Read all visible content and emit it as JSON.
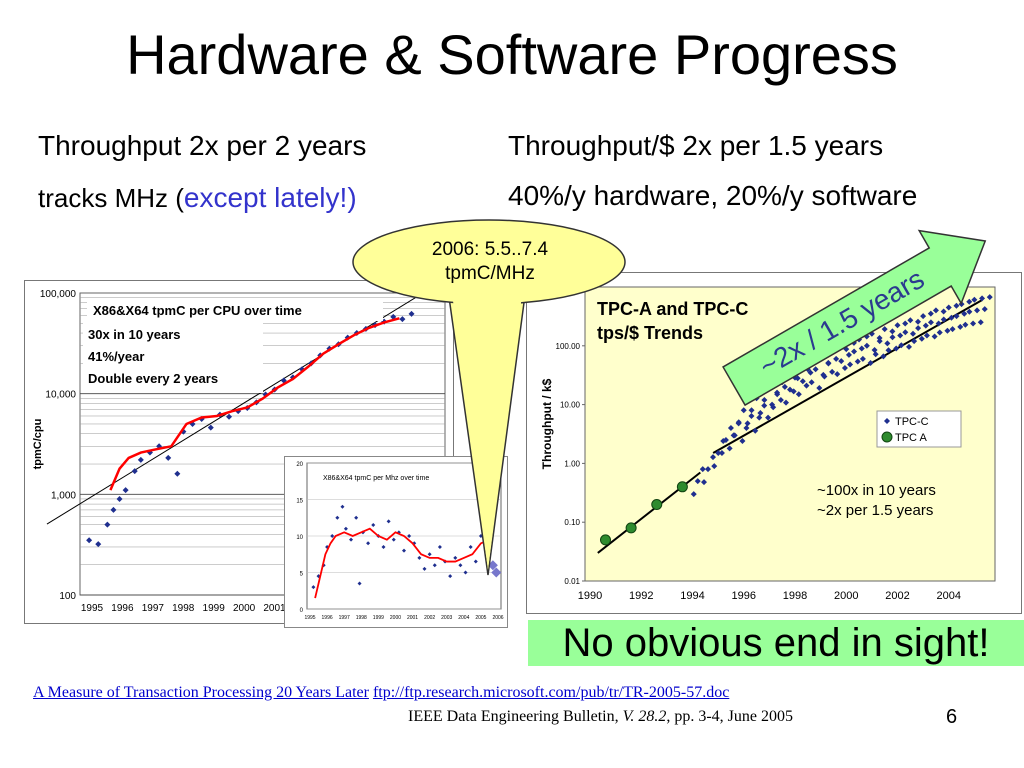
{
  "slide": {
    "title": "Hardware & Software Progress",
    "left_line1": "Throughput 2x per 2 years",
    "left_line2_prefix": "tracks MHz (",
    "left_line2_emph": "except lately!",
    "left_line2_suffix": ")",
    "right_line1": "Throughput/$  2x per 1.5 years",
    "right_line2": "40%/y hardware, 20%/y software",
    "callout_line1": "2006: 5.5..7.4",
    "callout_line2": "tpmC/MHz",
    "no_end": "No obvious end in sight!",
    "ref_link1": "A Measure of Transaction Processing 20 Years Later",
    "ref_link2": "ftp://ftp.research.microsoft.com/pub/tr/TR-2005-57.doc",
    "ref_citation_prefix": "IEEE Data Engineering Bulletin, ",
    "ref_citation_italic": "V. 28.2",
    "ref_citation_suffix": ", pp. 3-4, June 2005",
    "slide_number": "6",
    "colors": {
      "accent_text": "#3333cc",
      "trend_red": "#ff0000",
      "points_blue": "#1f2f8f",
      "highlight_green": "#99ff99",
      "callout_yellow": "#ffff99"
    }
  },
  "chart_data": [
    {
      "type": "scatter",
      "title": "X86&X64 tpmC per CPU over time",
      "annotations": [
        "30x in 10 years",
        "41%/year",
        "Double every 2 years"
      ],
      "ylabel": "tpmC/cpu",
      "yscale": "log",
      "ylim": [
        100,
        100000
      ],
      "ytick_labels": [
        "100",
        "1,000",
        "10,000",
        "100,000"
      ],
      "xlim": [
        1995,
        2007
      ],
      "xtick_labels": [
        "1995",
        "1996",
        "1997",
        "1998",
        "1999",
        "2000",
        "2001"
      ],
      "grid": true,
      "series": [
        {
          "values": [
            [
              1995.3,
              350
            ],
            [
              1995.6,
              320
            ],
            [
              1995.9,
              500
            ],
            [
              1996.1,
              700
            ],
            [
              1996.3,
              900
            ],
            [
              1996.5,
              1100
            ],
            [
              1996.8,
              1700
            ],
            [
              1997.0,
              2200
            ],
            [
              1997.3,
              2600
            ],
            [
              1997.6,
              3000
            ],
            [
              1997.9,
              2300
            ],
            [
              1998.2,
              1600
            ],
            [
              1998.4,
              4200
            ],
            [
              1998.7,
              5000
            ],
            [
              1999.0,
              5600
            ],
            [
              1999.3,
              4600
            ],
            [
              1999.6,
              6200
            ],
            [
              1999.9,
              5900
            ],
            [
              2000.2,
              6700
            ],
            [
              2000.5,
              7200
            ],
            [
              2000.8,
              8200
            ],
            [
              2001.1,
              9800
            ],
            [
              2001.4,
              11000
            ],
            [
              2001.7,
              13500
            ],
            [
              2002.0,
              14500
            ],
            [
              2002.3,
              17500
            ],
            [
              2002.6,
              20000
            ],
            [
              2002.9,
              24000
            ],
            [
              2003.2,
              28000
            ],
            [
              2003.5,
              31000
            ],
            [
              2003.8,
              36000
            ],
            [
              2004.1,
              40000
            ],
            [
              2004.4,
              44000
            ],
            [
              2004.7,
              48000
            ],
            [
              2005.0,
              52000
            ],
            [
              2005.3,
              58000
            ],
            [
              2005.6,
              55000
            ],
            [
              2005.9,
              62000
            ]
          ]
        }
      ],
      "trend": {
        "values": [
          [
            1996.0,
            1100
          ],
          [
            1996.3,
            1800
          ],
          [
            1996.6,
            2300
          ],
          [
            1997.0,
            2600
          ],
          [
            1997.5,
            2800
          ],
          [
            1998.0,
            3000
          ],
          [
            1998.5,
            5000
          ],
          [
            1999.0,
            5800
          ],
          [
            1999.5,
            6000
          ],
          [
            2000.0,
            6700
          ],
          [
            2000.5,
            7300
          ],
          [
            2001.0,
            8900
          ],
          [
            2001.5,
            11500
          ],
          [
            2002.0,
            14000
          ],
          [
            2002.5,
            18500
          ],
          [
            2003.0,
            25000
          ],
          [
            2003.5,
            31000
          ],
          [
            2004.0,
            38000
          ],
          [
            2004.5,
            45000
          ],
          [
            2005.0,
            51000
          ],
          [
            2005.5,
            56000
          ]
        ]
      },
      "fit_line": {
        "values": [
          [
            1994.9,
            800
          ],
          [
            2006.5,
            110000
          ]
        ]
      }
    },
    {
      "type": "scatter",
      "title": "X86&X64 tpmC per Mhz over time",
      "ylim": [
        0,
        20
      ],
      "ytick_labels": [
        "0",
        "5",
        "10",
        "15",
        "20"
      ],
      "xlim": [
        1995,
        2006
      ],
      "xtick_labels": [
        "1995",
        "1996",
        "1997",
        "1998",
        "1999",
        "2000",
        "2001",
        "2002",
        "2003",
        "2004",
        "2005",
        "2006"
      ],
      "series": [
        {
          "values": [
            [
              1995.2,
              3.0
            ],
            [
              1995.5,
              4.5
            ],
            [
              1995.8,
              6.0
            ],
            [
              1996.0,
              8.5
            ],
            [
              1996.3,
              10.0
            ],
            [
              1996.6,
              12.5
            ],
            [
              1996.9,
              14.0
            ],
            [
              1997.1,
              11.0
            ],
            [
              1997.4,
              9.5
            ],
            [
              1997.7,
              12.5
            ],
            [
              1997.9,
              3.5
            ],
            [
              1998.1,
              10.5
            ],
            [
              1998.4,
              9.0
            ],
            [
              1998.7,
              11.5
            ],
            [
              1999.0,
              10.0
            ],
            [
              1999.3,
              8.5
            ],
            [
              1999.6,
              12.0
            ],
            [
              1999.9,
              9.5
            ],
            [
              2000.2,
              10.5
            ],
            [
              2000.5,
              8.0
            ],
            [
              2000.8,
              10.0
            ],
            [
              2001.1,
              9.0
            ],
            [
              2001.4,
              7.0
            ],
            [
              2001.7,
              5.5
            ],
            [
              2002.0,
              7.5
            ],
            [
              2002.3,
              6.0
            ],
            [
              2002.6,
              8.5
            ],
            [
              2002.9,
              6.5
            ],
            [
              2003.2,
              4.5
            ],
            [
              2003.5,
              7.0
            ],
            [
              2003.8,
              6.0
            ],
            [
              2004.1,
              5.0
            ],
            [
              2004.4,
              8.5
            ],
            [
              2004.7,
              6.5
            ],
            [
              2005.0,
              10.0
            ],
            [
              2005.3,
              11.5
            ]
          ]
        }
      ],
      "trend": {
        "values": [
          [
            1995.3,
            1.5
          ],
          [
            1995.6,
            4.5
          ],
          [
            1995.9,
            7.5
          ],
          [
            1996.2,
            9.0
          ],
          [
            1996.5,
            10.0
          ],
          [
            1997.0,
            10.5
          ],
          [
            1997.5,
            10.0
          ],
          [
            1998.0,
            10.5
          ],
          [
            1998.5,
            11.0
          ],
          [
            1999.0,
            10.0
          ],
          [
            1999.5,
            9.5
          ],
          [
            2000.0,
            10.5
          ],
          [
            2000.5,
            10.0
          ],
          [
            2001.0,
            9.0
          ],
          [
            2001.5,
            7.5
          ],
          [
            2002.0,
            7.0
          ],
          [
            2002.5,
            7.0
          ],
          [
            2003.0,
            6.5
          ],
          [
            2003.5,
            6.5
          ],
          [
            2004.0,
            7.0
          ],
          [
            2004.5,
            7.5
          ],
          [
            2005.0,
            9.0
          ],
          [
            2005.5,
            9.5
          ]
        ]
      },
      "highlights": [
        [
          2005.7,
          6.0
        ],
        [
          2005.9,
          5.0
        ]
      ]
    },
    {
      "type": "scatter",
      "title": "TPC-A and TPC-C tps/$ Trends",
      "ylabel": "Throughput  / k$",
      "yscale": "log",
      "ylim": [
        0.01,
        1000
      ],
      "ytick_labels": [
        "0.01",
        "0.10",
        "1.00",
        "10.00",
        "100.00"
      ],
      "xlim": [
        1990,
        2006
      ],
      "xtick_labels": [
        "1990",
        "1992",
        "1994",
        "1996",
        "1998",
        "2000",
        "2002",
        "2004"
      ],
      "legend_position": "right",
      "series": [
        {
          "name": "TPC-C",
          "values": [
            [
              1994.4,
              0.5
            ],
            [
              1994.8,
              0.8
            ],
            [
              1995.2,
              1.5
            ],
            [
              1995.5,
              2.5
            ],
            [
              1995.8,
              3.0
            ],
            [
              1996.0,
              5.0
            ],
            [
              1996.3,
              4.0
            ],
            [
              1996.5,
              8.0
            ],
            [
              1996.8,
              6.0
            ],
            [
              1997.0,
              12.0
            ],
            [
              1997.3,
              10.0
            ],
            [
              1997.5,
              15.0
            ],
            [
              1997.8,
              20.0
            ],
            [
              1998.0,
              18.0
            ],
            [
              1998.3,
              28.0
            ],
            [
              1998.5,
              25.0
            ],
            [
              1998.8,
              35.0
            ],
            [
              1999.0,
              40.0
            ],
            [
              1999.3,
              32.0
            ],
            [
              1999.5,
              50.0
            ],
            [
              1999.8,
              60.0
            ],
            [
              2000.0,
              55.0
            ],
            [
              2000.3,
              70.0
            ],
            [
              2000.5,
              80.0
            ],
            [
              2000.8,
              90.0
            ],
            [
              2001.0,
              100.0
            ],
            [
              2001.3,
              85.0
            ],
            [
              2001.5,
              120.0
            ],
            [
              2001.8,
              110.0
            ],
            [
              2002.0,
              140.0
            ],
            [
              2002.3,
              150.0
            ],
            [
              2002.5,
              170.0
            ],
            [
              2002.8,
              160.0
            ],
            [
              2003.0,
              200.0
            ],
            [
              2003.3,
              220.0
            ],
            [
              2003.5,
              250.0
            ],
            [
              2003.8,
              240.0
            ],
            [
              2004.0,
              280.0
            ],
            [
              2004.3,
              300.0
            ],
            [
              2004.5,
              320.0
            ],
            [
              2004.8,
              350.0
            ],
            [
              2005.0,
              380.0
            ],
            [
              2005.3,
              400.0
            ],
            [
              2005.6,
              420.0
            ]
          ]
        },
        {
          "name": "TPC A",
          "values": [
            [
              1990.8,
              0.05
            ],
            [
              1991.8,
              0.08
            ],
            [
              1992.8,
              0.2
            ],
            [
              1993.8,
              0.4
            ]
          ]
        }
      ],
      "annotations": [
        "~100x in 10 years",
        "~2x per 1.5 years",
        "~2x / 1.5 years"
      ],
      "fit_lines": [
        {
          "values": [
            [
              1990.5,
              0.03
            ],
            [
              1994.5,
              0.7
            ]
          ]
        },
        {
          "values": [
            [
              1995.0,
              1.5
            ],
            [
              2005.5,
              600.0
            ]
          ]
        }
      ]
    }
  ]
}
